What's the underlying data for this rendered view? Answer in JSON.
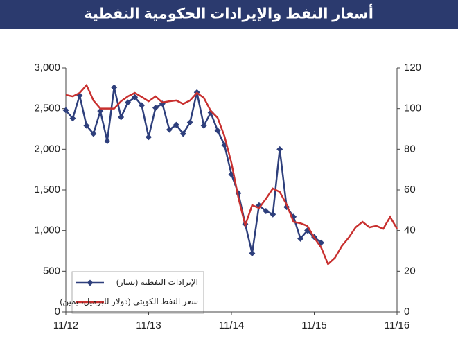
{
  "chart_data": {
    "type": "line",
    "title": "أسعار النفط والإيرادات الحكومية النفطية",
    "categories": [
      "11/12",
      null,
      null,
      null,
      null,
      null,
      null,
      null,
      null,
      null,
      null,
      null,
      "11/13",
      null,
      null,
      null,
      null,
      null,
      null,
      null,
      null,
      null,
      null,
      null,
      "11/14",
      null,
      null,
      null,
      null,
      null,
      null,
      null,
      null,
      null,
      null,
      null,
      "11/15",
      null,
      null,
      null,
      null,
      null,
      null,
      null,
      null,
      null,
      null,
      null,
      "11/16"
    ],
    "series": [
      {
        "name": "الإيرادات النفطية (يسار)",
        "color": "#2e3f7c",
        "marker": "diamond",
        "values": [
          2480,
          2380,
          2660,
          2290,
          2190,
          2470,
          2100,
          2760,
          2395,
          2575,
          2640,
          2540,
          2150,
          2510,
          2560,
          2240,
          2300,
          2190,
          2330,
          2700,
          2290,
          2450,
          2230,
          2050,
          1690,
          1460,
          1080,
          720,
          1310,
          1240,
          1200,
          2000,
          1290,
          1170,
          900,
          1000,
          920,
          850,
          null,
          null,
          null,
          null,
          null,
          null,
          null,
          null,
          null,
          null,
          null
        ]
      },
      {
        "name": "سعر النفط الكويتي (دولار للبرميل، يمين)",
        "color": "#c8302f",
        "axis": "y2",
        "values": [
          106.7,
          106,
          107.7,
          111.5,
          104,
          100,
          100,
          100,
          103.6,
          106,
          107.7,
          105.7,
          103.6,
          106,
          103,
          103.6,
          104,
          102.3,
          104,
          107.7,
          105.3,
          98.9,
          95.5,
          86.3,
          73.3,
          56.3,
          42.6,
          52.5,
          51.1,
          55.6,
          60.7,
          59,
          52.8,
          44.3,
          43.6,
          42.3,
          36.5,
          31.7,
          23.5,
          26.6,
          32.4,
          36.5,
          41.6,
          44.3,
          41.6,
          42.3,
          40.9,
          46.7,
          40.9
        ]
      }
    ],
    "ylim": [
      0,
      3000
    ],
    "yticks": [
      0,
      500,
      {
        "value": 1000,
        "label": "1,000"
      },
      {
        "value": 1500,
        "label": "1,500"
      },
      {
        "value": 2000,
        "label": "2,000"
      },
      {
        "value": 2500,
        "label": "2,500"
      },
      {
        "value": 3000,
        "label": "3,000"
      }
    ],
    "y2lim": [
      0,
      120
    ],
    "y2ticks": [
      0,
      20,
      40,
      60,
      80,
      100,
      120
    ],
    "grid": false,
    "legend": "bottom-left"
  }
}
